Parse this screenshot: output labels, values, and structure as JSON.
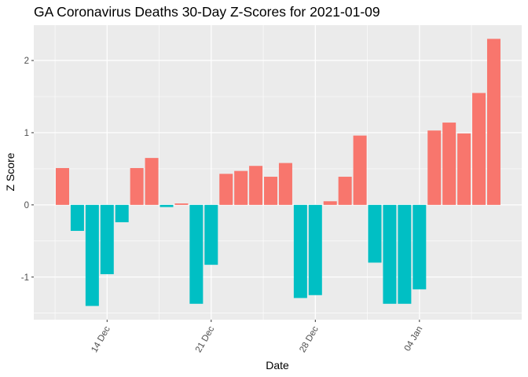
{
  "chart_data": {
    "type": "bar",
    "title": "GA Coronavirus Deaths 30-Day Z-Scores for 2021-01-09",
    "xlabel": "Date",
    "ylabel": "Z Score",
    "ylim": [
      -1.59,
      2.49
    ],
    "yticks": [
      -1,
      0,
      1,
      2
    ],
    "ytick_labels": [
      "-1",
      "0",
      "1",
      "2"
    ],
    "yminor": [
      -1.5,
      -0.5,
      0.5,
      1.5
    ],
    "grid": true,
    "legend": "none",
    "categories": [
      "2020-12-11",
      "2020-12-12",
      "2020-12-13",
      "2020-12-14",
      "2020-12-15",
      "2020-12-16",
      "2020-12-17",
      "2020-12-18",
      "2020-12-19",
      "2020-12-20",
      "2020-12-21",
      "2020-12-22",
      "2020-12-23",
      "2020-12-24",
      "2020-12-25",
      "2020-12-26",
      "2020-12-27",
      "2020-12-28",
      "2020-12-29",
      "2020-12-30",
      "2020-12-31",
      "2021-01-01",
      "2021-01-02",
      "2021-01-03",
      "2021-01-04",
      "2021-01-05",
      "2021-01-06",
      "2021-01-07",
      "2021-01-08",
      "2021-01-09"
    ],
    "values": [
      0.51,
      -0.36,
      -1.4,
      -0.96,
      -0.24,
      0.51,
      0.65,
      -0.03,
      0.02,
      -1.37,
      -0.83,
      0.43,
      0.47,
      0.54,
      0.39,
      0.58,
      -1.29,
      -1.25,
      0.05,
      0.39,
      0.96,
      -0.8,
      -1.37,
      -1.37,
      -1.17,
      1.03,
      1.14,
      0.99,
      1.55,
      2.3
    ],
    "xticks": [
      {
        "index": 3,
        "label": "14 Dec"
      },
      {
        "index": 10,
        "label": "21 Dec"
      },
      {
        "index": 17,
        "label": "28 Dec"
      },
      {
        "index": 24,
        "label": "04 Jan"
      }
    ],
    "xminor_index": [
      -0.5,
      6.5,
      13.5,
      20.5,
      27.5
    ],
    "colors": {
      "positive": "#F8766D",
      "negative": "#00BFC4",
      "panel": "#EBEBEB",
      "grid": "#FFFFFF",
      "tick": "#333333"
    }
  }
}
